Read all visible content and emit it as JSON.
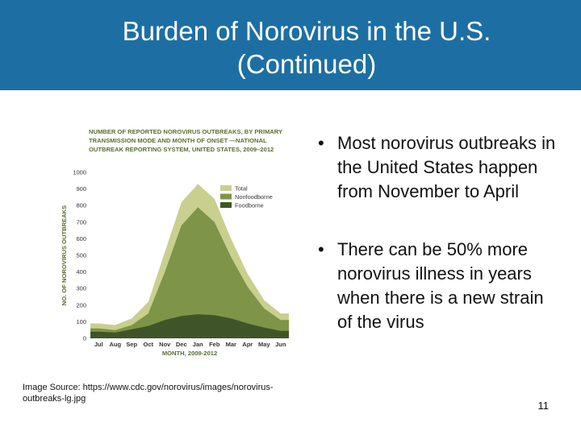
{
  "slide": {
    "title_line1": "Burden of Norovirus in the U.S.",
    "title_line2": "(Continued)",
    "bullets": [
      "Most norovirus outbreaks in the United States happen from November to April",
      "There can be 50% more norovirus illness in years when there is a new strain of the virus"
    ],
    "source": "Image Source: https://www.cdc.gov/norovirus/images/norovirus-outbreaks-lg.jpg",
    "page_number": "11"
  },
  "colors": {
    "header_bg": "#1d6fa3",
    "total": "#c9cf8e",
    "nonfoodborne": "#7e9448",
    "foodborne": "#3f5529",
    "chart_title": "#5a6e30",
    "axis_text": "#333333"
  },
  "chart_data": {
    "type": "area",
    "title": "NUMBER OF REPORTED NOROVIRUS OUTBREAKS, BY PRIMARY TRANSMISSION MODE AND MONTH OF ONSET —NATIONAL OUTBREAK REPORTING SYSTEM, UNITED STATES, 2009–2012",
    "title_lines": [
      "NUMBER OF REPORTED NOROVIRUS OUTBREAKS, BY PRIMARY",
      "TRANSMISSION MODE AND MONTH OF ONSET —NATIONAL",
      "OUTBREAK REPORTING SYSTEM, UNITED STATES, 2009–2012"
    ],
    "xlabel": "MONTH, 2009-2012",
    "ylabel": "NO. OF NOROVIRUS OUTBREAKS",
    "categories": [
      "Jul",
      "Aug",
      "Sep",
      "Oct",
      "Nov",
      "Dec",
      "Jan",
      "Feb",
      "Mar",
      "Apr",
      "May",
      "Jun"
    ],
    "ylim": [
      0,
      1000
    ],
    "yticks": [
      0,
      100,
      200,
      300,
      400,
      500,
      600,
      700,
      800,
      900,
      1000
    ],
    "legend_position": "top-right",
    "grid": false,
    "stacked_cumulative": true,
    "series": [
      {
        "name": "Total",
        "color_key": "total",
        "values": [
          90,
          80,
          120,
          220,
          520,
          820,
          930,
          840,
          600,
          390,
          230,
          150
        ]
      },
      {
        "name": "Nonfoodborne",
        "color_key": "nonfoodborne",
        "values": [
          60,
          50,
          80,
          150,
          400,
          680,
          790,
          700,
          490,
          310,
          180,
          110
        ]
      },
      {
        "name": "Foodborne",
        "color_key": "foodborne",
        "values": [
          40,
          35,
          55,
          75,
          110,
          135,
          145,
          140,
          120,
          90,
          65,
          45
        ]
      }
    ]
  }
}
